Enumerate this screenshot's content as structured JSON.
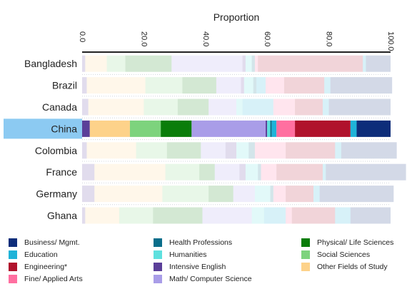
{
  "chart_data": {
    "type": "bar",
    "stacked": true,
    "orientation": "horizontal",
    "title": "Proportion",
    "xlabel": "",
    "ylabel": "",
    "xlim": [
      0,
      100
    ],
    "ticks": [
      "0.0",
      "20.0",
      "40.0",
      "60.0",
      "80.0",
      "100.0"
    ],
    "tick_values": [
      0,
      20,
      40,
      60,
      80,
      100
    ],
    "highlighted": "China",
    "legend_position": "bottom",
    "categories": [
      "Bangladesh",
      "Brazil",
      "Canada",
      "China",
      "Colombia",
      "France",
      "Germany",
      "Ghana"
    ],
    "series": [
      {
        "name": "Intensive English",
        "color": "#5b3f99",
        "values": [
          1,
          1.5,
          2,
          2.5,
          1.5,
          4,
          4,
          1
        ]
      },
      {
        "name": "Other Fields of Study",
        "color": "#fdd28a",
        "values": [
          7,
          19,
          18,
          13,
          16,
          23,
          22,
          11
        ]
      },
      {
        "name": "Social Sciences",
        "color": "#7dd37d",
        "values": [
          6,
          12,
          11,
          10,
          10,
          11,
          15,
          11
        ]
      },
      {
        "name": "Physical/ Life Sciences",
        "color": "#0a7d0a",
        "values": [
          15,
          11,
          10,
          10,
          11,
          5,
          8,
          16
        ]
      },
      {
        "name": "Math/ Computer Science",
        "color": "#a99de8",
        "values": [
          23,
          8,
          9,
          24,
          8,
          8,
          7,
          16
        ]
      },
      {
        "name": "Intensive English",
        "color": "#5b3f99",
        "values": [
          1,
          1,
          0,
          0.5,
          3.5,
          2,
          0,
          0
        ]
      },
      {
        "name": "Humanities",
        "color": "#5ee0de",
        "values": [
          2,
          3,
          2,
          1,
          4,
          4,
          5,
          4
        ]
      },
      {
        "name": "Health Professions",
        "color": "#0a6e8a",
        "values": [
          1,
          1,
          0,
          0.5,
          2,
          1,
          1,
          0
        ]
      },
      {
        "name": "Education",
        "color": "#1fb3d8",
        "values": [
          0,
          3,
          10,
          1.5,
          0,
          0,
          0,
          7
        ]
      },
      {
        "name": "Fine/ Applied Arts",
        "color": "#ff6fa0",
        "values": [
          1,
          6,
          7,
          6,
          10,
          5,
          4,
          2
        ]
      },
      {
        "name": "Engineering*",
        "color": "#b0122c",
        "values": [
          34,
          13,
          9,
          18,
          16,
          15,
          9,
          14
        ]
      },
      {
        "name": "Education",
        "color": "#1fb3d8",
        "values": [
          1,
          2,
          2,
          2,
          2,
          1,
          2,
          5
        ]
      },
      {
        "name": "Business/ Mgmt.",
        "color": "#0d2d7a",
        "values": [
          8,
          20,
          20,
          11,
          18,
          26,
          24,
          13
        ]
      }
    ]
  },
  "legend": [
    {
      "label": "Business/ Mgmt.",
      "color": "#0d2d7a"
    },
    {
      "label": "Education",
      "color": "#1fb3d8"
    },
    {
      "label": "Engineering*",
      "color": "#b0122c"
    },
    {
      "label": "Fine/ Applied Arts",
      "color": "#ff6fa0"
    },
    {
      "label": "Health Professions",
      "color": "#0a6e8a"
    },
    {
      "label": "Humanities",
      "color": "#5ee0de"
    },
    {
      "label": "Intensive English",
      "color": "#5b3f99"
    },
    {
      "label": "Math/ Computer Science",
      "color": "#a99de8"
    },
    {
      "label": "Physical/ Life Sciences",
      "color": "#0a7d0a"
    },
    {
      "label": "Social Sciences",
      "color": "#7dd37d"
    },
    {
      "label": "Other Fields of Study",
      "color": "#fdd28a"
    }
  ]
}
